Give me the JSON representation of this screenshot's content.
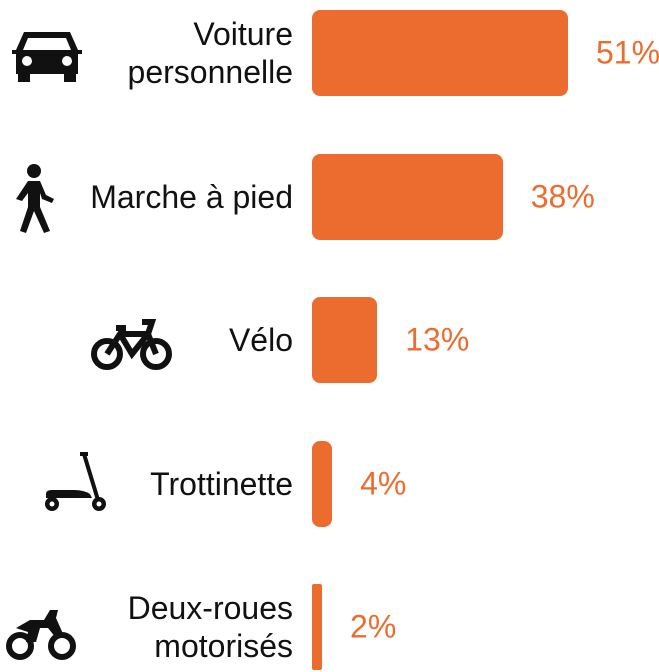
{
  "chart_data": {
    "type": "bar",
    "orientation": "horizontal",
    "categories": [
      "Voiture personnelle",
      "Marche à pied",
      "Vélo",
      "Trottinette",
      "Deux-roues motorisés"
    ],
    "values": [
      51,
      38,
      13,
      4,
      2
    ],
    "value_labels": [
      "51%",
      "38%",
      "13%",
      "4%",
      "2%"
    ],
    "color": "#ec6c30"
  }
}
